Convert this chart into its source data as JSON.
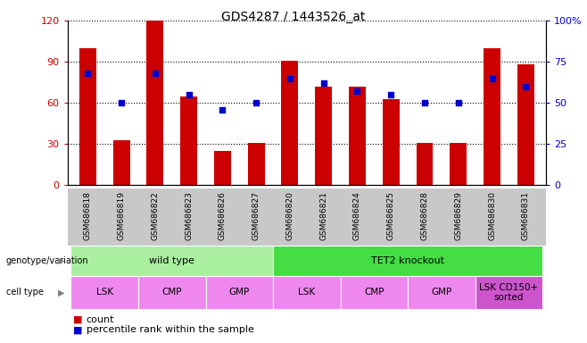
{
  "title": "GDS4287 / 1443526_at",
  "samples": [
    "GSM686818",
    "GSM686819",
    "GSM686822",
    "GSM686823",
    "GSM686826",
    "GSM686827",
    "GSM686820",
    "GSM686821",
    "GSM686824",
    "GSM686825",
    "GSM686828",
    "GSM686829",
    "GSM686830",
    "GSM686831"
  ],
  "counts": [
    100,
    33,
    120,
    65,
    25,
    31,
    91,
    72,
    72,
    63,
    31,
    31,
    100,
    88
  ],
  "percentiles": [
    68,
    50,
    68,
    55,
    46,
    50,
    65,
    62,
    57,
    55,
    50,
    50,
    65,
    60
  ],
  "bar_color": "#cc0000",
  "dot_color": "#0000cc",
  "ylim_left": [
    0,
    120
  ],
  "ylim_right": [
    0,
    100
  ],
  "yticks_left": [
    0,
    30,
    60,
    90,
    120
  ],
  "yticks_right": [
    0,
    25,
    50,
    75,
    100
  ],
  "ytick_labels_right": [
    "0",
    "25",
    "50",
    "75",
    "100%"
  ],
  "genotype_groups": [
    {
      "label": "wild type",
      "start": 0,
      "end": 6,
      "color": "#aaeea0"
    },
    {
      "label": "TET2 knockout",
      "start": 6,
      "end": 14,
      "color": "#44dd44"
    }
  ],
  "cell_type_groups": [
    {
      "label": "LSK",
      "start": 0,
      "end": 2,
      "color": "#ee88ee"
    },
    {
      "label": "CMP",
      "start": 2,
      "end": 4,
      "color": "#ee88ee"
    },
    {
      "label": "GMP",
      "start": 4,
      "end": 6,
      "color": "#ee88ee"
    },
    {
      "label": "LSK",
      "start": 6,
      "end": 8,
      "color": "#ee88ee"
    },
    {
      "label": "CMP",
      "start": 8,
      "end": 10,
      "color": "#ee88ee"
    },
    {
      "label": "GMP",
      "start": 10,
      "end": 12,
      "color": "#ee88ee"
    },
    {
      "label": "LSK CD150+\nsorted",
      "start": 12,
      "end": 14,
      "color": "#cc55cc"
    }
  ],
  "tick_area_color": "#c8c8c8",
  "bar_width": 0.5,
  "xlim": [
    -0.6,
    13.6
  ]
}
